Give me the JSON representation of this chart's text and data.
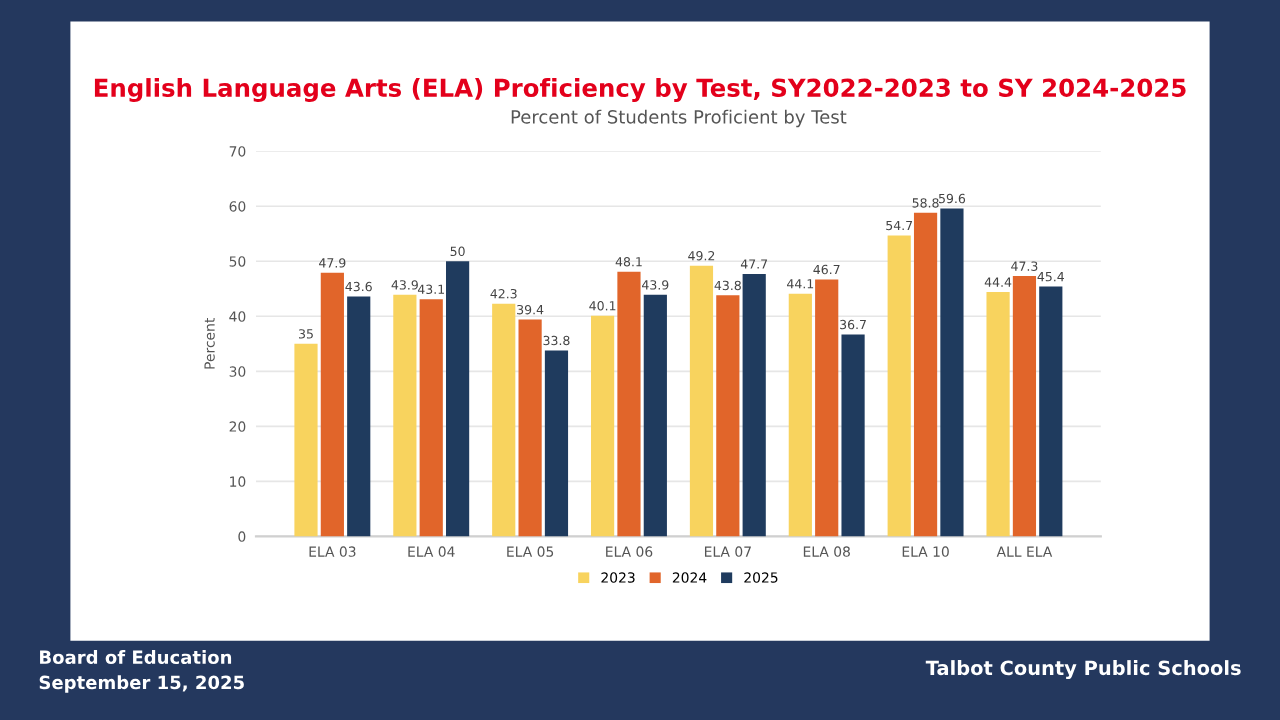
{
  "chart_data": {
    "type": "bar",
    "title": "English Language Arts (ELA) Proficiency by Test, SY2022-2023 to SY 2024-2025",
    "subtitle": "Percent of Students Proficient by Test",
    "ylabel": "Percent",
    "categories": [
      "ELA 03",
      "ELA 04",
      "ELA 05",
      "ELA 06",
      "ELA 07",
      "ELA 08",
      "ELA 10",
      "ALL ELA"
    ],
    "series": [
      {
        "name": "2023",
        "color": "#f8d35e",
        "values": [
          35,
          43.9,
          42.3,
          40.1,
          49.2,
          44.1,
          54.7,
          44.4
        ]
      },
      {
        "name": "2024",
        "color": "#e1652a",
        "values": [
          47.9,
          43.1,
          39.4,
          48.1,
          43.8,
          46.7,
          58.8,
          47.3
        ]
      },
      {
        "name": "2025",
        "color": "#1f3b5e",
        "values": [
          43.6,
          50,
          33.8,
          43.9,
          47.7,
          36.7,
          59.6,
          45.4
        ]
      }
    ],
    "ylim": [
      0,
      70
    ],
    "yticks": [
      0,
      10,
      20,
      30,
      40,
      50,
      60,
      70
    ],
    "grid": "y",
    "legend": "bottom",
    "data_labels": true,
    "annotations": [
      "Board of Education",
      "September 15, 2025",
      "Talbot County Public Schools"
    ]
  }
}
